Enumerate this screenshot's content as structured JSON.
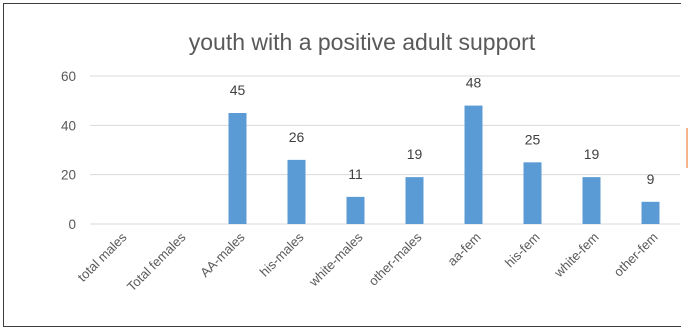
{
  "chart_data": {
    "type": "bar",
    "title": "youth with a positive adult support",
    "xlabel": "",
    "ylabel": "",
    "categories": [
      "total males",
      "Total females",
      "AA-males",
      "his-males",
      "white-males",
      "other-males",
      "aa-fem",
      "his-fem",
      "white-fem",
      "other-fem"
    ],
    "values": [
      0,
      0,
      45,
      26,
      11,
      19,
      48,
      25,
      19,
      9
    ],
    "data_labels": [
      "",
      "",
      "45",
      "26",
      "11",
      "19",
      "48",
      "25",
      "19",
      "9"
    ],
    "ylim": [
      0,
      60
    ],
    "yticks": [
      0,
      20,
      40,
      60
    ],
    "grid": true,
    "legend": "none",
    "colors": {
      "bar": "#5b9bd5",
      "grid": "#d9d9d9",
      "text": "#595959"
    }
  }
}
